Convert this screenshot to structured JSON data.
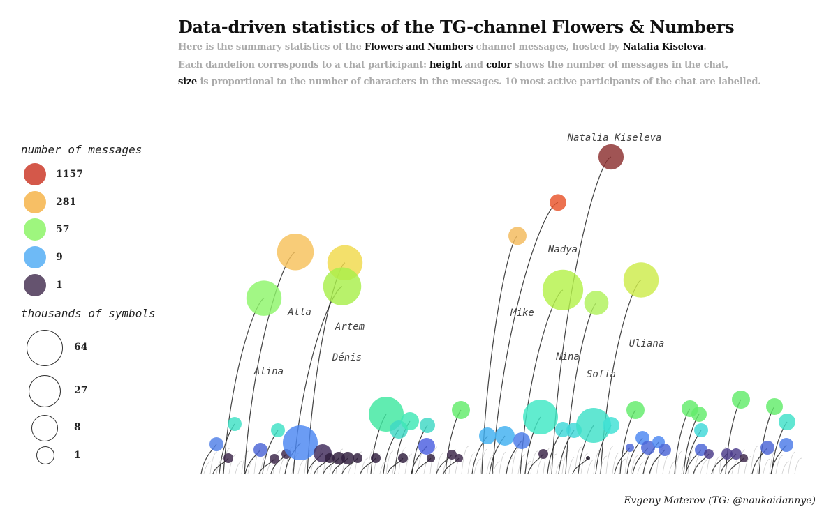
{
  "header": {
    "title": "Data-driven statistics of the TG-channel Flowers & Numbers",
    "line1": [
      {
        "t": "Here is the summary statistics of the ",
        "b": false
      },
      {
        "t": "Flowers and Numbers",
        "b": true
      },
      {
        "t": " channel messages, hosted by ",
        "b": false
      },
      {
        "t": "Natalia Kiseleva",
        "b": true
      },
      {
        "t": ".",
        "b": false
      }
    ],
    "line2": [
      {
        "t": "Each dandelion corresponds to a chat participant: ",
        "b": false
      },
      {
        "t": "height",
        "b": true
      },
      {
        "t": " and ",
        "b": false
      },
      {
        "t": "color",
        "b": true
      },
      {
        "t": " shows the number of messages in the chat,",
        "b": false
      }
    ],
    "line3": [
      {
        "t": "size",
        "b": true
      },
      {
        "t": " is proportional to the number of characters in the messages. 10 most active participants of the chat are labelled.",
        "b": false
      }
    ]
  },
  "legend": {
    "color_title": "number of messages",
    "color_items": [
      {
        "label": "1157",
        "color": "#cc3b2a"
      },
      {
        "label": "281",
        "color": "#f6b44a"
      },
      {
        "label": "57",
        "color": "#8df567"
      },
      {
        "label": "9",
        "color": "#55aef4"
      },
      {
        "label": "1",
        "color": "#4a3556"
      }
    ],
    "size_title": "thousands of symbols",
    "size_items": [
      {
        "label": "64"
      },
      {
        "label": "27"
      },
      {
        "label": "8"
      },
      {
        "label": "1"
      }
    ]
  },
  "credit": "Evgeny Materov (TG: @naukaidannye)",
  "chart_data": {
    "type": "scatter",
    "title": "Data-driven statistics of the TG-channel Flowers & Numbers",
    "encoding": "one dandelion per chat participant; height and color = number of messages; size = thousands of characters",
    "y_scale": "log",
    "ylim": [
      1,
      1157
    ],
    "labelled": [
      {
        "name": "Natalia Kiseleva",
        "messages": 1157,
        "kchars": 22,
        "color": "#8b2e2e"
      },
      {
        "name": "Nadya",
        "messages": 420,
        "kchars": 7,
        "color": "#e8532a"
      },
      {
        "name": "Mike",
        "messages": 200,
        "kchars": 9,
        "color": "#f3b95a"
      },
      {
        "name": "Alla",
        "messages": 140,
        "kchars": 55,
        "color": "#f6c15a"
      },
      {
        "name": "Artem",
        "messages": 110,
        "kchars": 50,
        "color": "#f0d94a"
      },
      {
        "name": "Uliana",
        "messages": 75,
        "kchars": 50,
        "color": "#cdeb4a"
      },
      {
        "name": "Dénis",
        "messages": 65,
        "kchars": 60,
        "color": "#a8ef4a"
      },
      {
        "name": "Nina",
        "messages": 60,
        "kchars": 70,
        "color": "#b5f24a"
      },
      {
        "name": "Alina",
        "messages": 50,
        "kchars": 50,
        "color": "#8ef56a"
      },
      {
        "name": "Sofia",
        "messages": 45,
        "kchars": 20,
        "color": "#b0f25a"
      }
    ]
  }
}
